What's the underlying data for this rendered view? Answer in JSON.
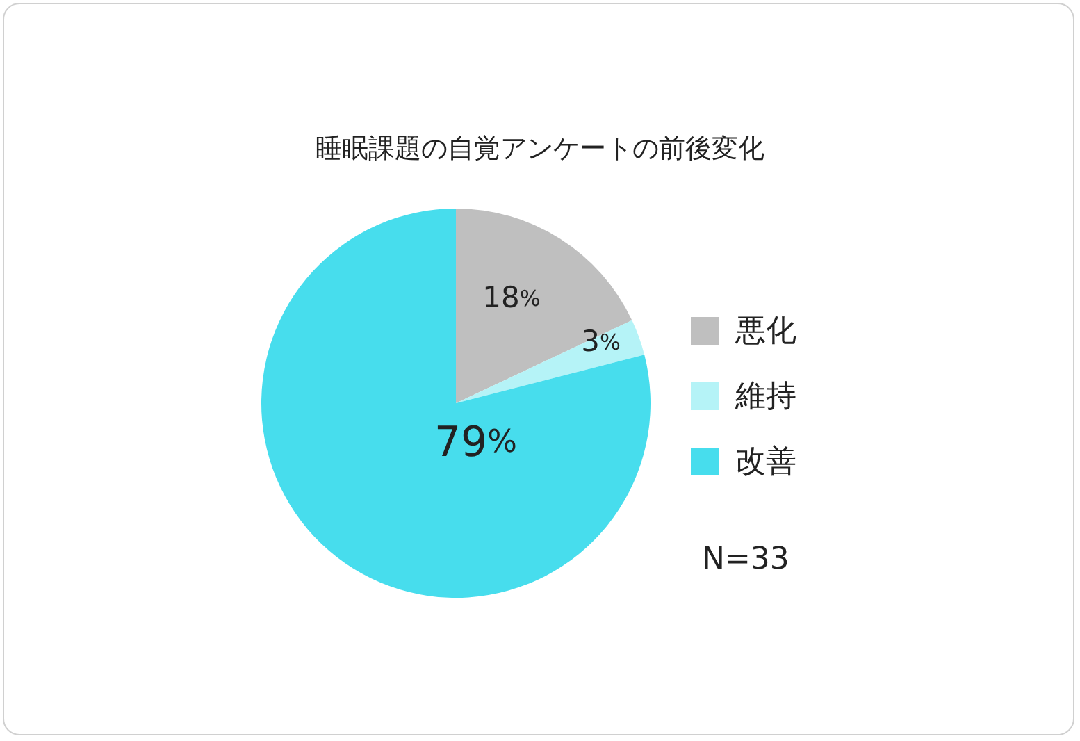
{
  "chart_data": {
    "type": "pie",
    "title": "睡眠課題の自覚アンケートの前後変化",
    "categories": [
      "悪化",
      "維持",
      "改善"
    ],
    "values": [
      18,
      3,
      79
    ],
    "colors": [
      "#bfbfbf",
      "#b5f3f7",
      "#47dded"
    ],
    "value_labels": [
      "18%",
      "3%",
      "79%"
    ],
    "legend": "right",
    "annotations": [
      "N=33"
    ]
  }
}
